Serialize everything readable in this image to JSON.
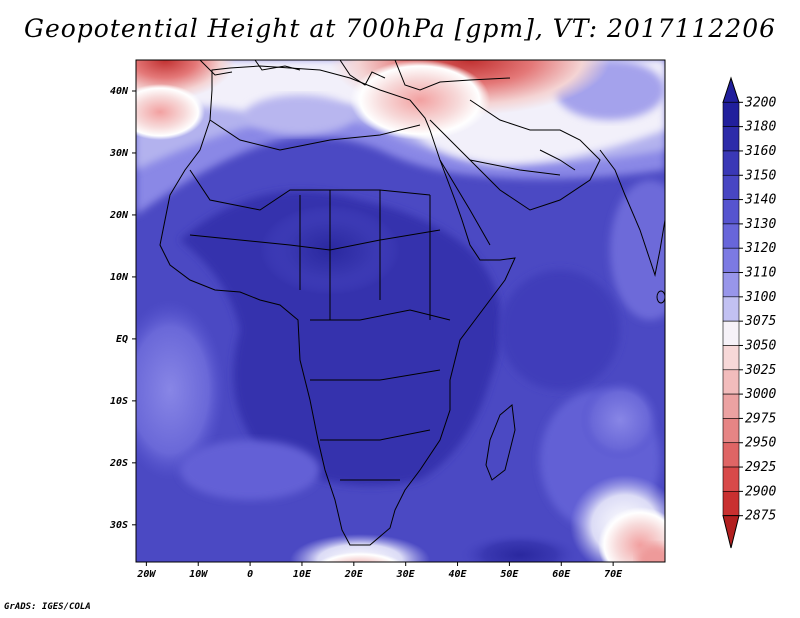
{
  "title": "Geopotential Height at 700hPa [gpm], VT: 2017112206",
  "footer": "GrADS: IGES/COLA",
  "map": {
    "lat_labels": [
      {
        "lat": 40,
        "text": "40N"
      },
      {
        "lat": 30,
        "text": "30N"
      },
      {
        "lat": 20,
        "text": "20N"
      },
      {
        "lat": 10,
        "text": "10N"
      },
      {
        "lat": 0,
        "text": "EQ"
      },
      {
        "lat": -10,
        "text": "10S"
      },
      {
        "lat": -20,
        "text": "20S"
      },
      {
        "lat": -30,
        "text": "30S"
      }
    ],
    "lon_labels": [
      {
        "lon": -20,
        "text": "20W"
      },
      {
        "lon": -10,
        "text": "10W"
      },
      {
        "lon": 0,
        "text": "0"
      },
      {
        "lon": 10,
        "text": "10E"
      },
      {
        "lon": 20,
        "text": "20E"
      },
      {
        "lon": 30,
        "text": "30E"
      },
      {
        "lon": 40,
        "text": "40E"
      },
      {
        "lon": 50,
        "text": "50E"
      },
      {
        "lon": 60,
        "text": "60E"
      },
      {
        "lon": 70,
        "text": "70E"
      }
    ],
    "lon_range": [
      -22,
      80
    ],
    "lat_range": [
      -36,
      45
    ]
  },
  "colorbar": {
    "levels": [
      "3200",
      "3180",
      "3160",
      "3150",
      "3140",
      "3130",
      "3120",
      "3110",
      "3100",
      "3075",
      "3050",
      "3025",
      "3000",
      "2975",
      "2950",
      "2925",
      "2900",
      "2875"
    ],
    "colors": [
      "#211f9c",
      "#2d2ba9",
      "#3a38b6",
      "#4846c3",
      "#5654cf",
      "#6866da",
      "#7c7ae3",
      "#9896ea",
      "#c2c1f2",
      "#f6f2f8",
      "#f7d8d8",
      "#f2bcbc",
      "#eca2a2",
      "#e68585",
      "#df6565",
      "#d84949",
      "#c93030",
      "#b21f1f"
    ]
  }
}
